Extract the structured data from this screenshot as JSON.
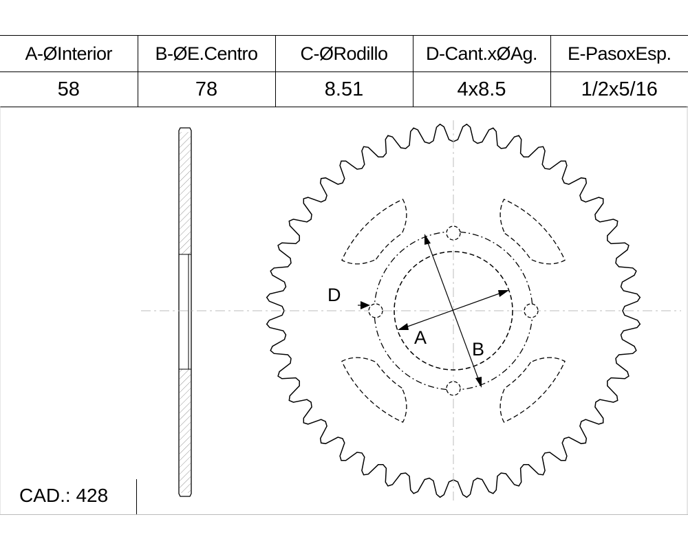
{
  "table": {
    "headers": [
      "A-ØInterior",
      "B-ØE.Centro",
      "C-ØRodillo",
      "D-Cant.xØAg.",
      "E-PasoxEsp."
    ],
    "values": [
      "58",
      "78",
      "8.51",
      "4x8.5",
      "1/2x5/16"
    ]
  },
  "drawing": {
    "labels": {
      "a": "A",
      "b": "B",
      "d": "D"
    },
    "teeth": 44,
    "bolt_holes": 4
  },
  "footer": {
    "cad": "CAD.: 428"
  }
}
